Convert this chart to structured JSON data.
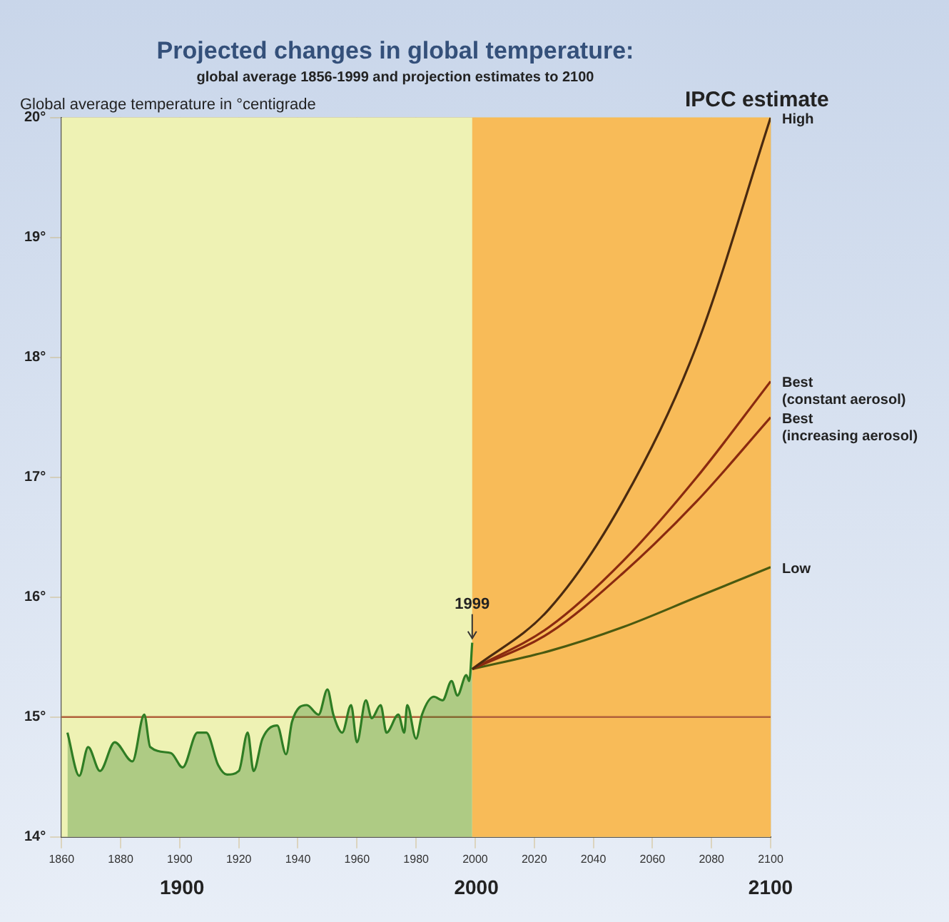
{
  "chart_data": {
    "type": "line",
    "title": "Projected changes in global temperature:",
    "subtitle": "global average 1856-1999 and projection estimates to 2100",
    "ylabel": "Global average temperature in °centigrade",
    "legend_title": "IPCC estimate",
    "xlim": [
      1860,
      2100
    ],
    "xticks": [
      1860,
      1880,
      1900,
      1920,
      1940,
      1960,
      1980,
      2000,
      2020,
      2040,
      2060,
      2080,
      2100
    ],
    "ylim": [
      14,
      20
    ],
    "yticks": [
      {
        "value": 14,
        "label": "14°"
      },
      {
        "value": 15,
        "label": "15°"
      },
      {
        "value": 16,
        "label": "16°"
      },
      {
        "value": 17,
        "label": "17°"
      },
      {
        "value": 18,
        "label": "18°"
      },
      {
        "value": 19,
        "label": "19°"
      },
      {
        "value": 20,
        "label": "20°"
      }
    ],
    "grid": true,
    "legend": false,
    "bands": [
      {
        "axis": "x",
        "from": 1999,
        "to": 2100,
        "color": "#f8bb58"
      }
    ],
    "ref_lines": [
      {
        "axis": "y",
        "value": 15,
        "color": "#b0603a"
      }
    ],
    "series": [
      {
        "type": "area",
        "color": "#2f7d24",
        "x": [
          1862,
          1866,
          1869,
          1873,
          1878,
          1884,
          1888,
          1890,
          1897,
          1901,
          1906,
          1909,
          1913,
          1916,
          1920,
          1923,
          1925,
          1928,
          1933,
          1936,
          1938,
          1943,
          1947,
          1950,
          1952,
          1955,
          1958,
          1960,
          1963,
          1965,
          1968,
          1970,
          1974,
          1976,
          1977,
          1980,
          1982,
          1986,
          1989,
          1992,
          1994,
          1997,
          1998,
          1999
        ],
        "values": [
          14.87,
          14.51,
          14.75,
          14.55,
          14.79,
          14.63,
          15.02,
          14.75,
          14.7,
          14.58,
          14.87,
          14.87,
          14.6,
          14.52,
          14.55,
          14.87,
          14.55,
          14.82,
          14.93,
          14.69,
          14.96,
          15.1,
          15.02,
          15.23,
          15.02,
          14.87,
          15.1,
          14.79,
          15.14,
          14.99,
          15.1,
          14.87,
          15.02,
          14.87,
          15.1,
          14.82,
          15.02,
          15.17,
          15.14,
          15.3,
          15.18,
          15.35,
          15.3,
          15.62
        ]
      },
      {
        "name": "High",
        "color": "#4a2a10",
        "x": [
          1999,
          2025,
          2050,
          2075,
          2100
        ],
        "values": [
          15.4,
          15.9,
          16.8,
          18.1,
          20.0
        ]
      },
      {
        "name": "Best\n(constant aerosol)",
        "color": "#8a2a10",
        "x": [
          1999,
          2025,
          2050,
          2075,
          2100
        ],
        "values": [
          15.4,
          15.75,
          16.3,
          17.0,
          17.8
        ]
      },
      {
        "name": "Best\n(increasing aerosol)",
        "color": "#8a2a10",
        "x": [
          1999,
          2025,
          2050,
          2075,
          2100
        ],
        "values": [
          15.4,
          15.7,
          16.2,
          16.8,
          17.5
        ]
      },
      {
        "name": "Low",
        "color": "#4a5a10",
        "x": [
          1999,
          2025,
          2050,
          2075,
          2100
        ],
        "values": [
          15.4,
          15.55,
          15.75,
          16.0,
          16.25
        ]
      }
    ],
    "annotations": [
      {
        "text": "1999",
        "x": 1999,
        "y": 15.62
      },
      "1900",
      "2000",
      "2100"
    ]
  }
}
